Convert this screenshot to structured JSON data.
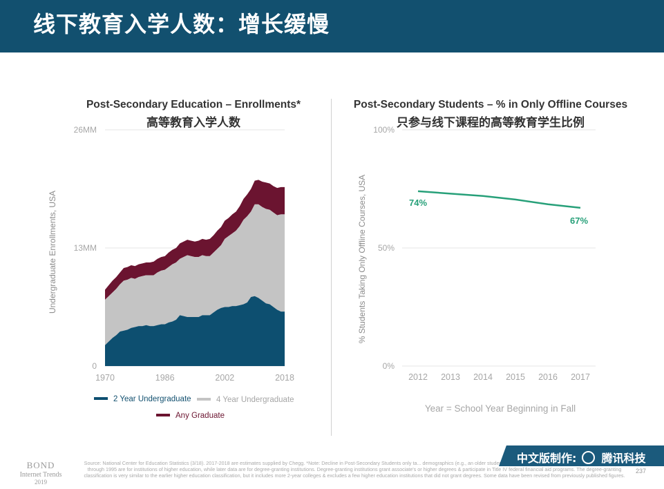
{
  "header": {
    "title": "线下教育入学人数：增长缓慢"
  },
  "colors": {
    "header_bg": "#12506f",
    "two_year": "#0d4f70",
    "four_year": "#c4c4c4",
    "graduate": "#6b1430",
    "offline_line": "#27a079"
  },
  "chart_data": [
    {
      "type": "area",
      "stacked": true,
      "title": "Post-Secondary Education – Enrollments*",
      "title_zh": "高等教育入学人数",
      "ylabel": "Undergraduate Enrollments, USA",
      "ylim": [
        0,
        26
      ],
      "yticks": [
        "0",
        "13MM",
        "26MM"
      ],
      "xticks": [
        "1970",
        "1986",
        "2002",
        "2018"
      ],
      "x": [
        1970,
        1971,
        1972,
        1973,
        1974,
        1975,
        1976,
        1977,
        1978,
        1979,
        1980,
        1981,
        1982,
        1983,
        1984,
        1985,
        1986,
        1987,
        1988,
        1989,
        1990,
        1991,
        1992,
        1993,
        1994,
        1995,
        1996,
        1997,
        1998,
        1999,
        2000,
        2001,
        2002,
        2003,
        2004,
        2005,
        2006,
        2007,
        2008,
        2009,
        2010,
        2011,
        2012,
        2013,
        2014,
        2015,
        2016,
        2017,
        2018
      ],
      "series": [
        {
          "name": "2 Year Undergraduate",
          "values": [
            2.3,
            2.7,
            3.1,
            3.4,
            3.8,
            3.9,
            4.0,
            4.2,
            4.3,
            4.4,
            4.4,
            4.5,
            4.4,
            4.4,
            4.5,
            4.6,
            4.6,
            4.8,
            4.9,
            5.1,
            5.6,
            5.5,
            5.4,
            5.4,
            5.4,
            5.4,
            5.6,
            5.6,
            5.6,
            5.9,
            6.2,
            6.4,
            6.5,
            6.5,
            6.6,
            6.6,
            6.7,
            6.8,
            7.0,
            7.6,
            7.7,
            7.5,
            7.2,
            6.9,
            6.8,
            6.5,
            6.2,
            6.0,
            6.0
          ]
        },
        {
          "name": "4 Year Undergraduate",
          "values": [
            5.0,
            5.0,
            5.0,
            5.1,
            5.2,
            5.5,
            5.5,
            5.5,
            5.3,
            5.4,
            5.5,
            5.5,
            5.6,
            5.6,
            5.8,
            5.9,
            6.0,
            6.1,
            6.3,
            6.3,
            6.2,
            6.5,
            6.8,
            6.7,
            6.6,
            6.6,
            6.6,
            6.5,
            6.5,
            6.6,
            6.7,
            6.9,
            7.5,
            7.8,
            8.0,
            8.3,
            8.7,
            9.3,
            9.5,
            9.4,
            10.1,
            10.3,
            10.3,
            10.4,
            10.4,
            10.4,
            10.4,
            10.7,
            10.7
          ]
        },
        {
          "name": "Any Graduate",
          "values": [
            1.1,
            1.2,
            1.3,
            1.3,
            1.3,
            1.4,
            1.4,
            1.4,
            1.4,
            1.4,
            1.4,
            1.4,
            1.4,
            1.5,
            1.5,
            1.5,
            1.5,
            1.6,
            1.6,
            1.6,
            1.7,
            1.7,
            1.7,
            1.7,
            1.7,
            1.8,
            1.8,
            1.8,
            1.9,
            1.9,
            2.0,
            2.0,
            2.0,
            2.0,
            2.1,
            2.1,
            2.2,
            2.3,
            2.4,
            2.5,
            2.6,
            2.7,
            2.8,
            2.9,
            2.9,
            2.9,
            3.0,
            3.0,
            3.0
          ]
        }
      ],
      "legend": [
        "2 Year Undergraduate",
        "4 Year Undergraduate",
        "Any Graduate"
      ]
    },
    {
      "type": "line",
      "title": "Post-Secondary Students – % in Only Offline Courses",
      "title_zh": "只参与线下课程的高等教育学生比例",
      "ylabel": "% Students Taking Only Offline Courses, USA",
      "xlabel": "Year = School Year Beginning in Fall",
      "ylim": [
        0,
        100
      ],
      "yticks": [
        "0%",
        "50%",
        "100%"
      ],
      "x": [
        "2012",
        "2013",
        "2014",
        "2015",
        "2016",
        "2017"
      ],
      "series": [
        {
          "values": [
            74,
            73,
            72,
            70.5,
            68.5,
            67
          ]
        }
      ],
      "labels": [
        "74%",
        "67%"
      ]
    }
  ],
  "footer": {
    "brand": "BOND",
    "brand_sub": "Internet Trends",
    "brand_year": "2019",
    "source": "Source: National Center for Education Statistics (3/18). 2017-2018 are estimates supplied by Chegg. *Note: Decline in Post-Secondary Students only ta... demographics (e.g., an older student base more likely to be employed while at school). Data through 1995 are for institutions of higher education, while later data are for degree-granting institutions. Degree-granting institutions grant associate's or higher degrees & participate in Title IV federal financial aid programs. The degree-granting classification is very similar to the earlier higher education classification, but it includes more 2-year colleges & excludes a few higher education institutions that did not grant degrees. Some data have been revised from previously published figures.",
    "page": "237",
    "banner_prefix": "中文版制作:",
    "banner_brand": "腾讯科技"
  }
}
